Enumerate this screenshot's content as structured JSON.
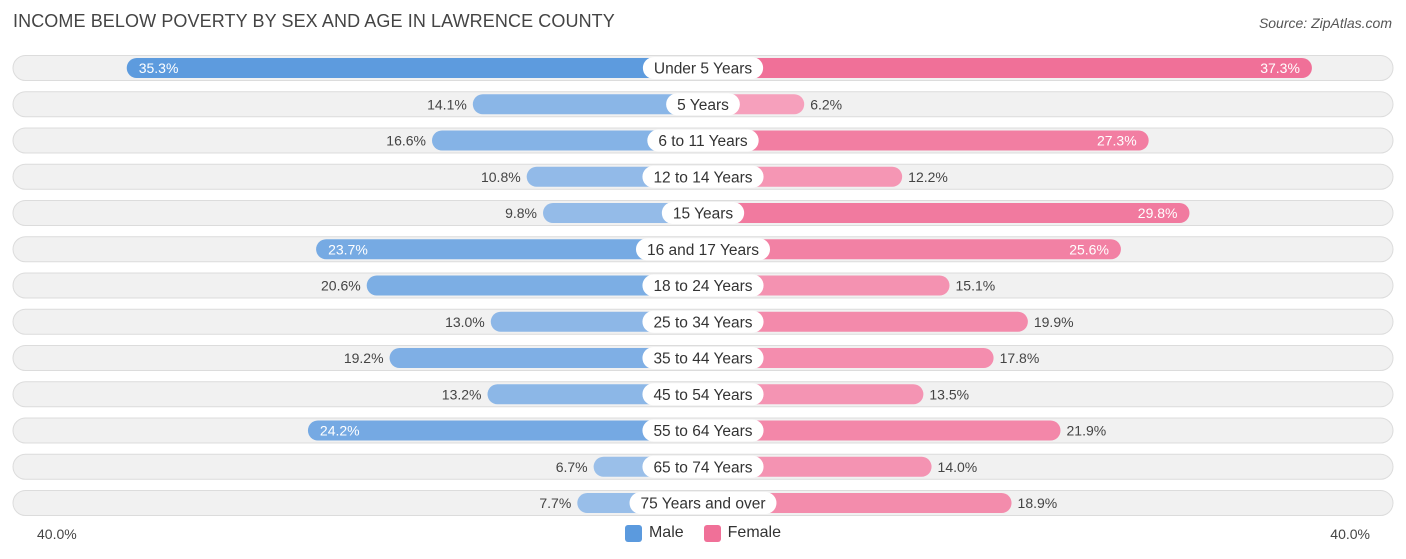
{
  "header": {
    "title": "INCOME BELOW POVERTY BY SEX AND AGE IN LAWRENCE COUNTY",
    "source": "Source: ZipAtlas.com"
  },
  "colors": {
    "male_strong": "#5b9ade",
    "male_light": "#a9c8ec",
    "female_strong": "#f07098",
    "female_light": "#f7aac3",
    "row_bg": "#f1f1f1",
    "row_border": "#dcdcdc"
  },
  "axis": {
    "left_label": "40.0%",
    "right_label": "40.0%"
  },
  "legend": {
    "male_label": "Male",
    "female_label": "Female"
  },
  "chart_data": {
    "type": "bar",
    "orientation": "horizontal-diverging",
    "title": "INCOME BELOW POVERTY BY SEX AND AGE IN LAWRENCE COUNTY",
    "xlim": [
      -40,
      40
    ],
    "categories": [
      "Under 5 Years",
      "5 Years",
      "6 to 11 Years",
      "12 to 14 Years",
      "15 Years",
      "16 and 17 Years",
      "18 to 24 Years",
      "25 to 34 Years",
      "35 to 44 Years",
      "45 to 54 Years",
      "55 to 64 Years",
      "65 to 74 Years",
      "75 Years and over"
    ],
    "series": [
      {
        "name": "Male",
        "values": [
          35.3,
          14.1,
          16.6,
          10.8,
          9.8,
          23.7,
          20.6,
          13.0,
          19.2,
          13.2,
          24.2,
          6.7,
          7.7
        ],
        "labels": [
          "35.3%",
          "14.1%",
          "16.6%",
          "10.8%",
          "9.8%",
          "23.7%",
          "20.6%",
          "13.0%",
          "19.2%",
          "13.2%",
          "24.2%",
          "6.7%",
          "7.7%"
        ]
      },
      {
        "name": "Female",
        "values": [
          37.3,
          6.2,
          27.3,
          12.2,
          29.8,
          25.6,
          15.1,
          19.9,
          17.8,
          13.5,
          21.9,
          14.0,
          18.9
        ],
        "labels": [
          "37.3%",
          "6.2%",
          "27.3%",
          "12.2%",
          "29.8%",
          "25.6%",
          "15.1%",
          "19.9%",
          "17.8%",
          "13.5%",
          "21.9%",
          "14.0%",
          "18.9%"
        ]
      }
    ],
    "xlabel": "",
    "ylabel": "",
    "legend_position": "bottom-center"
  }
}
